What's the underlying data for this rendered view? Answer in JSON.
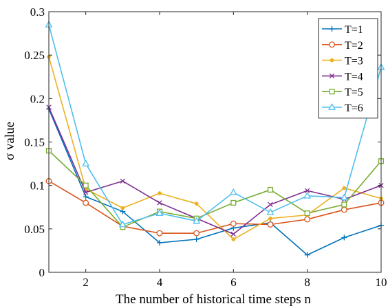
{
  "chart_data": {
    "type": "line",
    "title": "",
    "xlabel": "The number of historical time steps n",
    "ylabel": "σ value",
    "xlim": [
      1,
      10
    ],
    "ylim": [
      0,
      0.3
    ],
    "x": [
      1,
      2,
      3,
      4,
      5,
      6,
      7,
      8,
      9,
      10
    ],
    "xticks": [
      2,
      4,
      6,
      8,
      10
    ],
    "yticks": [
      0,
      0.05,
      0.1,
      0.15,
      0.2,
      0.25,
      0.3
    ],
    "ytick_labels": [
      "0",
      "0.05",
      "0.1",
      "0.15",
      "0.2",
      "0.25",
      "0.3"
    ],
    "grid": false,
    "legend_position": "top-right",
    "series": [
      {
        "name": "T=1",
        "color": "#0072BD",
        "marker": "plus",
        "values": [
          0.188,
          0.087,
          0.07,
          0.034,
          0.038,
          0.051,
          0.057,
          0.02,
          0.04,
          0.054
        ]
      },
      {
        "name": "T=2",
        "color": "#D95319",
        "marker": "circle",
        "values": [
          0.105,
          0.08,
          0.053,
          0.045,
          0.045,
          0.056,
          0.055,
          0.061,
          0.072,
          0.08
        ]
      },
      {
        "name": "T=3",
        "color": "#EDB120",
        "marker": "dot",
        "values": [
          0.248,
          0.096,
          0.074,
          0.091,
          0.079,
          0.038,
          0.062,
          0.066,
          0.097,
          0.085
        ]
      },
      {
        "name": "T=4",
        "color": "#7E2F8E",
        "marker": "x",
        "values": [
          0.19,
          0.092,
          0.105,
          0.08,
          0.062,
          0.044,
          0.078,
          0.094,
          0.084,
          0.1
        ]
      },
      {
        "name": "T=5",
        "color": "#77AC30",
        "marker": "square",
        "values": [
          0.14,
          0.1,
          0.052,
          0.07,
          0.062,
          0.08,
          0.095,
          0.068,
          0.078,
          0.128
        ]
      },
      {
        "name": "T=6",
        "color": "#4DBEEE",
        "marker": "triangle",
        "values": [
          0.285,
          0.125,
          0.055,
          0.068,
          0.059,
          0.092,
          0.069,
          0.088,
          0.086,
          0.236
        ]
      }
    ]
  }
}
